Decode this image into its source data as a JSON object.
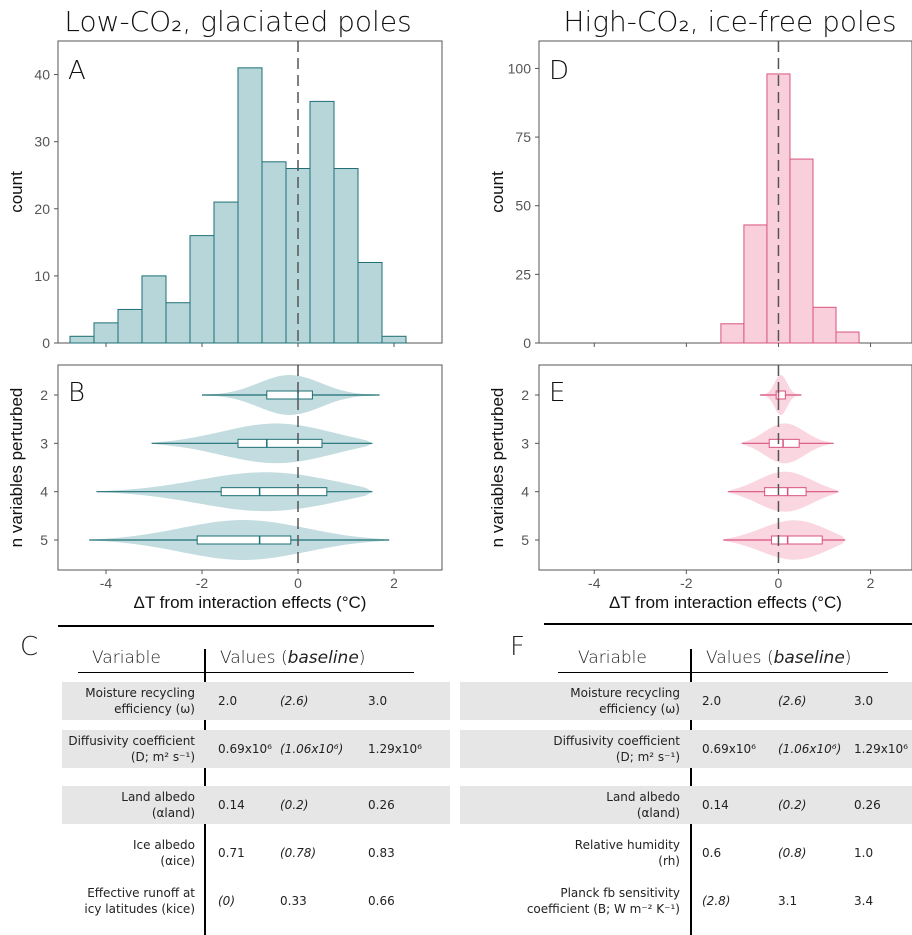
{
  "colors": {
    "teal_fill": "#b7d6d9",
    "teal_stroke": "#1e6f75",
    "pink_fill": "#f9cfdc",
    "pink_stroke": "#d9547f",
    "shade": "#e6e6e6"
  },
  "panels": {
    "left_title": "Low-CO₂, glaciated poles",
    "right_title": "High-CO₂, ice-free poles",
    "A": "A",
    "B": "B",
    "C": "C",
    "D": "D",
    "E": "E",
    "F": "F"
  },
  "chart_data": [
    {
      "panel": "A",
      "type": "bar",
      "ylabel": "count",
      "bin_width": 0.5,
      "bin_centers": [
        -4.5,
        -4.0,
        -3.5,
        -3.0,
        -2.5,
        -2.0,
        -1.5,
        -1.0,
        -0.5,
        0.0,
        0.5,
        1.0,
        1.5,
        2.0
      ],
      "values": [
        1,
        3,
        5,
        10,
        6,
        16,
        21,
        41,
        27,
        26,
        36,
        26,
        12,
        1
      ],
      "xlim": [
        -5.0,
        3.0
      ],
      "ylim": [
        0,
        45
      ],
      "yticks": [
        0,
        10,
        20,
        30,
        40
      ],
      "xticks": [
        -4,
        -2,
        0,
        2
      ],
      "dashed_line_x": 0,
      "grid": false
    },
    {
      "panel": "B",
      "type": "violin",
      "xlabel": "ΔT from interaction effects (°C)",
      "ylabel": "n variables perturbed",
      "categories": [
        "2",
        "3",
        "4",
        "5"
      ],
      "xlim": [
        -5.0,
        3.0
      ],
      "xticks": [
        -4,
        -2,
        0,
        2
      ],
      "xtick_labels": [
        "-4",
        "-2",
        "0",
        "2"
      ],
      "violins": [
        {
          "n": "2",
          "min": -2.0,
          "q1": -0.65,
          "median": 0.0,
          "q3": 0.3,
          "max": 1.7
        },
        {
          "n": "3",
          "min": -3.05,
          "q1": -1.25,
          "median": -0.65,
          "q3": 0.5,
          "max": 1.55
        },
        {
          "n": "4",
          "min": -4.2,
          "q1": -1.6,
          "median": -0.8,
          "q3": 0.6,
          "max": 1.55
        },
        {
          "n": "5",
          "min": -4.35,
          "q1": -2.1,
          "median": -0.8,
          "q3": -0.15,
          "max": 1.9
        }
      ]
    },
    {
      "panel": "D",
      "type": "bar",
      "ylabel": "count",
      "bin_width": 0.5,
      "bin_centers": [
        -1.0,
        -0.5,
        0.0,
        0.5,
        1.0,
        1.5
      ],
      "values": [
        7,
        43,
        98,
        67,
        13,
        4
      ],
      "xlim": [
        -5.2,
        2.9
      ],
      "ylim": [
        0,
        110
      ],
      "yticks": [
        0,
        25,
        50,
        75,
        100
      ],
      "xticks": [
        -4,
        -2,
        0,
        2
      ],
      "dashed_line_x": 0,
      "grid": false
    },
    {
      "panel": "E",
      "type": "violin",
      "xlabel": "ΔT from interaction effects (°C)",
      "ylabel": "n variables perturbed",
      "categories": [
        "2",
        "3",
        "4",
        "5"
      ],
      "xlim": [
        -5.2,
        2.9
      ],
      "xticks": [
        -4,
        -2,
        0,
        2
      ],
      "xtick_labels": [
        "-4",
        "-2",
        "0",
        "2"
      ],
      "violins": [
        {
          "n": "2",
          "min": -0.4,
          "q1": -0.05,
          "median": 0.0,
          "q3": 0.15,
          "max": 0.5
        },
        {
          "n": "3",
          "min": -0.8,
          "q1": -0.2,
          "median": 0.1,
          "q3": 0.45,
          "max": 1.2
        },
        {
          "n": "4",
          "min": -1.1,
          "q1": -0.3,
          "median": 0.2,
          "q3": 0.6,
          "max": 1.3
        },
        {
          "n": "5",
          "min": -1.2,
          "q1": -0.15,
          "median": 0.2,
          "q3": 0.95,
          "max": 1.45
        }
      ]
    }
  ],
  "tables": {
    "header_variable": "Variable",
    "header_values": "Values (",
    "header_baseline": "baseline",
    "header_close": ")",
    "left": [
      {
        "name_lines": [
          "Moisture recycling",
          "efficiency (ω)"
        ],
        "low": "2.0",
        "base": "(2.6)",
        "high": "3.0",
        "shade": true
      },
      {
        "name_lines": [
          "Diffusivity coefficient",
          "(D; m² s⁻¹)"
        ],
        "low": "0.69x10⁶",
        "base": "(1.06x10⁶)",
        "high": "1.29x10⁶",
        "shade": true
      },
      {
        "name_lines": [
          "Land albedo",
          "(αland)"
        ],
        "low": "0.14",
        "base": "(0.2)",
        "high": "0.26",
        "shade": true
      },
      {
        "name_lines": [
          "Ice albedo",
          "(αice)"
        ],
        "low": "0.71",
        "base": "(0.78)",
        "high": "0.83",
        "shade": false
      },
      {
        "name_lines": [
          "Effective runoff at",
          "icy latitudes (kice)"
        ],
        "low": "(0)",
        "base": "0.33",
        "high": "0.66",
        "shade": false
      }
    ],
    "right": [
      {
        "name_lines": [
          "Moisture recycling",
          "efficiency (ω)"
        ],
        "low": "2.0",
        "base": "(2.6)",
        "high": "3.0",
        "shade": true
      },
      {
        "name_lines": [
          "Diffusivity coefficient",
          "(D; m² s⁻¹)"
        ],
        "low": "0.69x10⁶",
        "base": "(1.06x10⁶)",
        "high": "1.29x10⁶",
        "shade": true
      },
      {
        "name_lines": [
          "Land albedo",
          "(αland)"
        ],
        "low": "0.14",
        "base": "(0.2)",
        "high": "0.26",
        "shade": true
      },
      {
        "name_lines": [
          "Relative humidity",
          "(rh)"
        ],
        "low": "0.6",
        "base": "(0.8)",
        "high": "1.0",
        "shade": false
      },
      {
        "name_lines": [
          "Planck fb sensitivity",
          "coefficient (B; W m⁻² K⁻¹)"
        ],
        "low": "(2.8)",
        "base": "3.1",
        "high": "3.4",
        "shade": false
      }
    ]
  }
}
